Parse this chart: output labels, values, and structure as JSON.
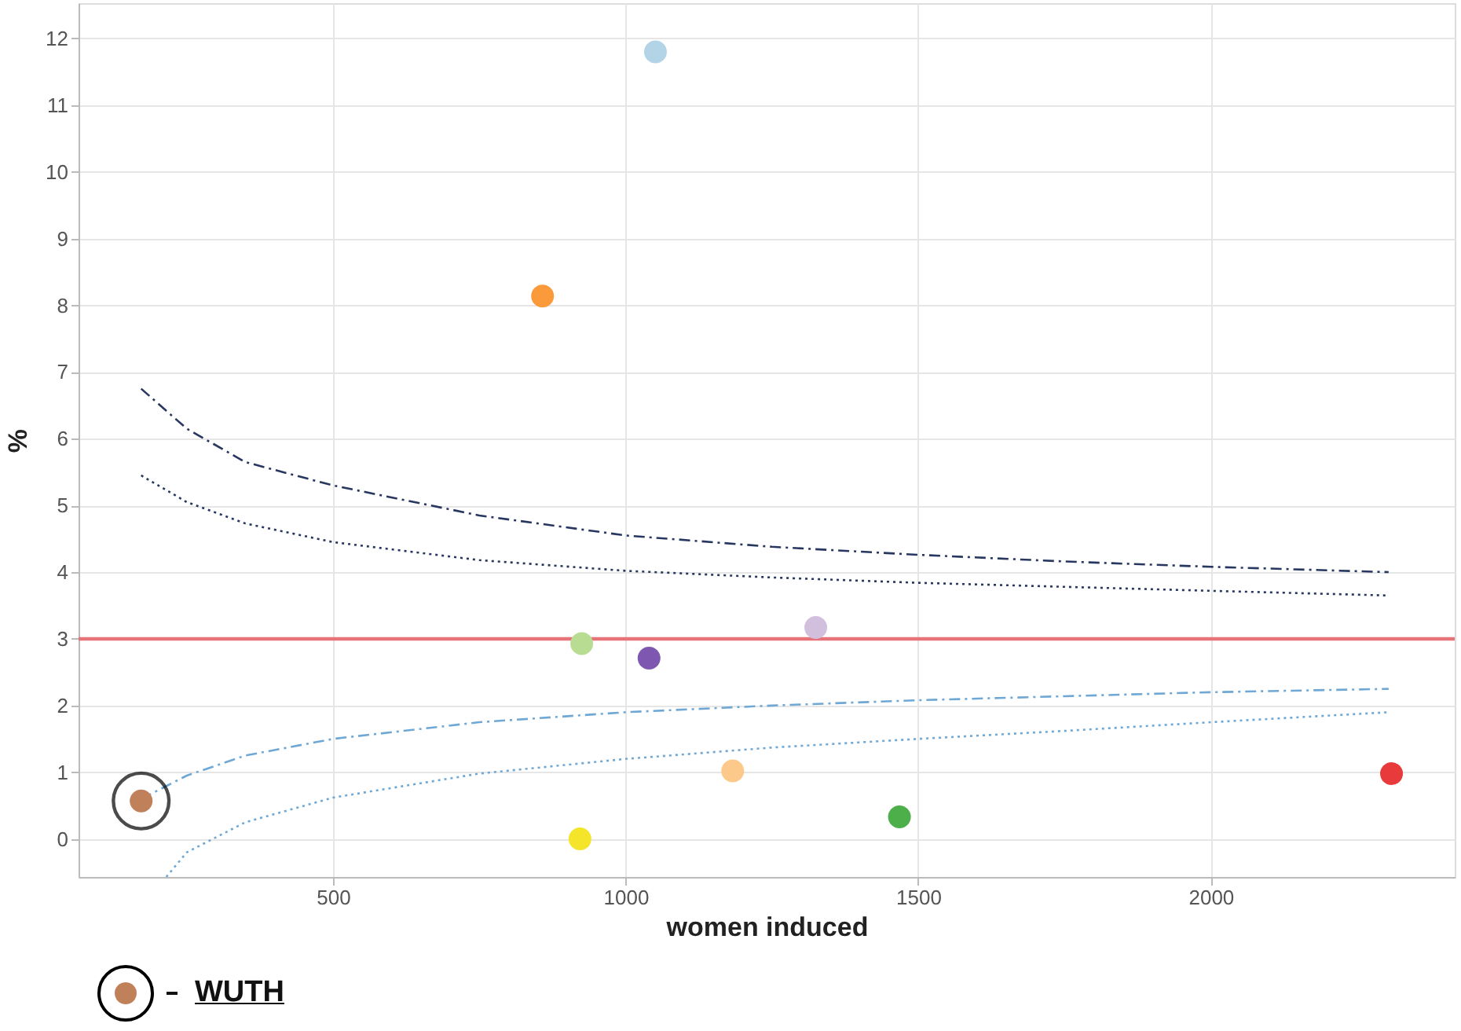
{
  "chart_data": {
    "type": "scatter",
    "xlabel": "women induced",
    "ylabel": "%",
    "xlim": [
      65,
      2417
    ],
    "ylim": [
      -0.57,
      12.53
    ],
    "xticks": [
      500,
      {
        "value": 1000,
        "label": "1000"
      },
      {
        "value": 1500,
        "label": "1500"
      },
      {
        "value": 2000,
        "label": "2000"
      }
    ],
    "yticks": [
      0,
      1,
      2,
      3,
      4,
      5,
      6,
      7,
      8,
      9,
      10,
      11,
      12
    ],
    "grid": true,
    "series": [
      {
        "marker": "circle",
        "x": [
          1051,
          858,
          925,
          1040,
          1325,
          1183,
          922,
          1468,
          2309,
          172
        ],
        "values": [
          11.8,
          8.14,
          2.93,
          2.71,
          3.17,
          1.02,
          0.0,
          0.33,
          0.98,
          0.57
        ],
        "colors": [
          "#b3d3e6",
          "#fb9a3a",
          "#b8dd92",
          "#7e57b0",
          "#d2bfdd",
          "#fdc98a",
          "#f5e52a",
          "#4daf4a",
          "#e8393b",
          "#c0805a"
        ]
      },
      {
        "type": "line",
        "line_style": "dashed",
        "color": "#27375f",
        "x": [
          172,
          250,
          350,
          500,
          750,
          1000,
          1250,
          1500,
          1750,
          2000,
          2304
        ],
        "values": [
          6.75,
          6.15,
          5.65,
          5.3,
          4.85,
          4.55,
          4.38,
          4.26,
          4.16,
          4.08,
          4.0
        ]
      },
      {
        "type": "line",
        "line_style": "dotted",
        "color": "#27375f",
        "x": [
          172,
          250,
          350,
          500,
          750,
          1000,
          1250,
          1500,
          1750,
          2000,
          2304
        ],
        "values": [
          5.45,
          5.05,
          4.73,
          4.45,
          4.18,
          4.02,
          3.92,
          3.84,
          3.78,
          3.72,
          3.65
        ]
      },
      {
        "type": "line",
        "line_style": "dashed",
        "color": "#6fa8d4",
        "x": [
          172,
          250,
          350,
          500,
          750,
          1000,
          1250,
          1500,
          1750,
          2000,
          2304
        ],
        "values": [
          0.6,
          0.95,
          1.25,
          1.5,
          1.75,
          1.9,
          2.0,
          2.08,
          2.14,
          2.2,
          2.25
        ]
      },
      {
        "type": "line",
        "line_style": "dotted",
        "color": "#6fa8d4",
        "x": [
          215,
          250,
          350,
          500,
          750,
          1000,
          1250,
          1500,
          1750,
          2000,
          2304
        ],
        "values": [
          -0.57,
          -0.2,
          0.25,
          0.62,
          0.98,
          1.2,
          1.37,
          1.5,
          1.62,
          1.75,
          1.9
        ]
      }
    ],
    "ref_lines": [
      {
        "axis": "y",
        "value": 3,
        "color": "#e57378"
      }
    ],
    "annotations": [
      "WUTH"
    ]
  }
}
